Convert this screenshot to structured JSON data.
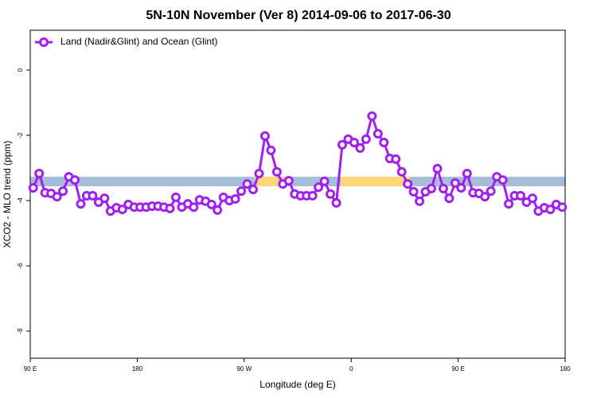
{
  "chart_data": {
    "type": "line",
    "title": "5N-10N November (Ver 8)   2014-09-06 to 2017-06-30",
    "x_label": "Longitude (deg E)",
    "y_label": "XCO2 - MLO trend (ppm)",
    "legend": "top-left",
    "x": [
      92.5,
      97.5,
      102.5,
      107.5,
      112.5,
      117.5,
      122.5,
      127.5,
      132.5,
      137.5,
      142.5,
      147.5,
      152.5,
      157.5,
      162.5,
      167.5,
      172.5,
      177.5,
      182.5,
      187.5,
      192.5,
      197.5,
      202.5,
      207.5,
      212.5,
      217.5,
      222.5,
      227.5,
      232.5,
      237.5,
      242.5,
      247.5,
      252.5,
      257.5,
      262.5,
      267.5,
      272.5,
      277.5,
      282.5,
      287.5,
      292.5,
      297.5,
      302.5,
      307.5,
      312.5,
      317.5,
      322.5,
      327.5,
      332.5,
      337.5,
      342.5,
      347.5,
      352.5,
      357.5,
      362.5,
      367.5,
      372.5,
      377.5,
      382.5,
      387.5,
      392.5,
      397.5,
      402.5,
      407.5,
      412.5,
      417.5,
      422.5,
      427.5,
      432.5,
      437.5,
      442.5,
      447.5,
      452.5,
      457.5,
      462.5,
      467.5,
      472.5,
      477.5,
      482.5,
      487.5,
      492.5,
      497.5,
      502.5,
      507.5,
      512.5,
      517.5,
      522.5,
      527.5,
      532.5,
      537.5
    ],
    "series": [
      {
        "name": "Land (Nadir&Glint) and Ocean (Glint)",
        "color": "#a020f0",
        "values": [
          -3.61,
          -3.17,
          -3.76,
          -3.78,
          -3.88,
          -3.71,
          -3.27,
          -3.37,
          -4.1,
          -3.85,
          -3.85,
          -4.05,
          -3.93,
          -4.32,
          -4.22,
          -4.27,
          -4.12,
          -4.2,
          -4.2,
          -4.2,
          -4.17,
          -4.17,
          -4.2,
          -4.24,
          -3.9,
          -4.2,
          -4.1,
          -4.2,
          -3.98,
          -4.02,
          -4.12,
          -4.29,
          -3.9,
          -4.0,
          -3.95,
          -3.71,
          -3.49,
          -3.66,
          -3.17,
          -2.02,
          -2.46,
          -3.12,
          -3.49,
          -3.39,
          -3.8,
          -3.85,
          -3.85,
          -3.85,
          -3.59,
          -3.41,
          -3.8,
          -4.07,
          -2.29,
          -2.12,
          -2.22,
          -2.39,
          -2.12,
          -1.41,
          -1.95,
          -2.22,
          -2.71,
          -2.73,
          -3.12,
          -3.49,
          -3.73,
          -4.02,
          -3.73,
          -3.63,
          -3.02,
          -3.63,
          -3.93,
          -3.46,
          -3.61,
          -3.17,
          -3.76,
          -3.78,
          -3.88,
          -3.71,
          -3.27,
          -3.37,
          -4.1,
          -3.85,
          -3.85,
          -4.05,
          -3.93,
          -4.32,
          -4.22,
          -4.27,
          -4.12,
          -4.2
        ]
      }
    ],
    "xlim": [
      90,
      540
    ],
    "xticks": [
      {
        "value": 90,
        "label": "90 E"
      },
      {
        "value": 180,
        "label": "180"
      },
      {
        "value": 270,
        "label": "90 W"
      },
      {
        "value": 360,
        "label": "0"
      },
      {
        "value": 450,
        "label": "90 E"
      },
      {
        "value": 540,
        "label": "180"
      }
    ],
    "ylim": [
      -8.83,
      1.22
    ],
    "yticks": [
      0,
      -2,
      -4,
      -6,
      -8
    ]
  }
}
